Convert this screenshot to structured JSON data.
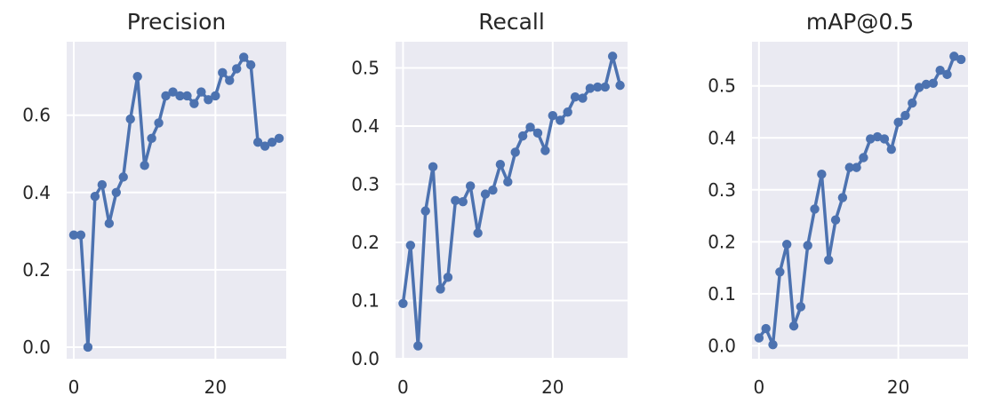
{
  "colors": {
    "background": "#eaeaf2",
    "grid": "#ffffff",
    "series": "#4c72b0"
  },
  "chart_data": [
    {
      "type": "line",
      "title": "Precision",
      "xlabel": "",
      "ylabel": "",
      "xlim": [
        -1,
        30
      ],
      "ylim": [
        -0.03,
        0.79
      ],
      "xticks": [
        0,
        20
      ],
      "yticks": [
        0.0,
        0.2,
        0.4,
        0.6
      ],
      "ytick_labels": [
        "0.0",
        "0.2",
        "0.4",
        "0.6"
      ],
      "xtick_labels": [
        "0",
        "20"
      ],
      "grid": true,
      "markers": true,
      "x": [
        0,
        1,
        2,
        3,
        4,
        5,
        6,
        7,
        8,
        9,
        10,
        11,
        12,
        13,
        14,
        15,
        16,
        17,
        18,
        19,
        20,
        21,
        22,
        23,
        24,
        25,
        26,
        27,
        28,
        29
      ],
      "y": [
        0.29,
        0.29,
        0.0,
        0.39,
        0.42,
        0.32,
        0.4,
        0.44,
        0.59,
        0.7,
        0.47,
        0.54,
        0.58,
        0.65,
        0.66,
        0.65,
        0.65,
        0.63,
        0.66,
        0.64,
        0.65,
        0.71,
        0.69,
        0.72,
        0.75,
        0.73,
        0.53,
        0.52,
        0.53,
        0.54
      ]
    },
    {
      "type": "line",
      "title": "Recall",
      "xlabel": "",
      "ylabel": "",
      "xlim": [
        -1,
        30
      ],
      "ylim": [
        0.0,
        0.545
      ],
      "xticks": [
        0,
        20
      ],
      "yticks": [
        0.0,
        0.1,
        0.2,
        0.3,
        0.4,
        0.5
      ],
      "ytick_labels": [
        "0.0",
        "0.1",
        "0.2",
        "0.3",
        "0.4",
        "0.5"
      ],
      "xtick_labels": [
        "0",
        "20"
      ],
      "grid": true,
      "markers": true,
      "x": [
        0,
        1,
        2,
        3,
        4,
        5,
        6,
        7,
        8,
        9,
        10,
        11,
        12,
        13,
        14,
        15,
        16,
        17,
        18,
        19,
        20,
        21,
        22,
        23,
        24,
        25,
        26,
        27,
        28,
        29
      ],
      "y": [
        0.095,
        0.195,
        0.022,
        0.254,
        0.33,
        0.12,
        0.14,
        0.272,
        0.27,
        0.297,
        0.216,
        0.283,
        0.29,
        0.334,
        0.304,
        0.355,
        0.383,
        0.398,
        0.388,
        0.358,
        0.418,
        0.41,
        0.424,
        0.45,
        0.448,
        0.465,
        0.467,
        0.467,
        0.52,
        0.47
      ]
    },
    {
      "type": "line",
      "title": "mAP@0.5",
      "xlabel": "",
      "ylabel": "",
      "xlim": [
        -1,
        30
      ],
      "ylim": [
        -0.025,
        0.585
      ],
      "xticks": [
        0,
        20
      ],
      "yticks": [
        0.0,
        0.1,
        0.2,
        0.3,
        0.4,
        0.5
      ],
      "ytick_labels": [
        "0.0",
        "0.1",
        "0.2",
        "0.3",
        "0.4",
        "0.5"
      ],
      "xtick_labels": [
        "0",
        "20"
      ],
      "grid": true,
      "markers": true,
      "x": [
        0,
        1,
        2,
        3,
        4,
        5,
        6,
        7,
        8,
        9,
        10,
        11,
        12,
        13,
        14,
        15,
        16,
        17,
        18,
        19,
        20,
        21,
        22,
        23,
        24,
        25,
        26,
        27,
        28,
        29
      ],
      "y": [
        0.015,
        0.033,
        0.002,
        0.142,
        0.195,
        0.038,
        0.075,
        0.193,
        0.263,
        0.33,
        0.165,
        0.242,
        0.285,
        0.343,
        0.343,
        0.362,
        0.398,
        0.402,
        0.398,
        0.378,
        0.43,
        0.443,
        0.467,
        0.497,
        0.503,
        0.505,
        0.53,
        0.522,
        0.557,
        0.551
      ]
    }
  ]
}
